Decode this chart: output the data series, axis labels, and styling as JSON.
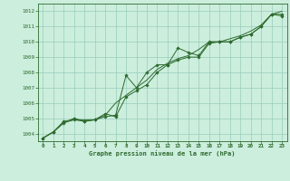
{
  "title": "Graphe pression niveau de la mer (hPa)",
  "bg_color": "#cceedd",
  "grid_color": "#99ccbb",
  "line_color": "#2d6a2d",
  "marker_color": "#2d6a2d",
  "xlim": [
    -0.5,
    23.5
  ],
  "ylim": [
    1003.5,
    1012.5
  ],
  "yticks": [
    1004,
    1005,
    1006,
    1007,
    1008,
    1009,
    1010,
    1011,
    1012
  ],
  "xticks": [
    0,
    1,
    2,
    3,
    4,
    5,
    6,
    7,
    8,
    9,
    10,
    11,
    12,
    13,
    14,
    15,
    16,
    17,
    18,
    19,
    20,
    21,
    22,
    23
  ],
  "series1_marked": {
    "x": [
      0,
      1,
      2,
      3,
      4,
      5,
      6,
      7,
      8,
      9,
      10,
      11,
      12,
      13,
      14,
      15,
      16,
      17,
      18,
      19,
      20,
      21,
      22,
      23
    ],
    "y": [
      1003.7,
      1004.1,
      1004.7,
      1005.0,
      1004.8,
      1004.9,
      1005.1,
      1005.2,
      1007.8,
      1007.0,
      1008.0,
      1008.5,
      1008.5,
      1009.6,
      1009.3,
      1009.1,
      1010.0,
      1010.0,
      1010.0,
      1010.3,
      1010.5,
      1011.0,
      1011.8,
      1011.7
    ]
  },
  "series2_marked": {
    "x": [
      0,
      1,
      2,
      3,
      4,
      5,
      6,
      7,
      8,
      9,
      10,
      11,
      12,
      13,
      14,
      15,
      16,
      17,
      18,
      19,
      20,
      21,
      22,
      23
    ],
    "y": [
      1003.7,
      1004.1,
      1004.8,
      1004.9,
      1004.8,
      1004.9,
      1005.3,
      1005.1,
      1006.4,
      1006.8,
      1007.2,
      1008.0,
      1008.5,
      1008.8,
      1009.0,
      1009.0,
      1009.9,
      1010.0,
      1010.0,
      1010.3,
      1010.5,
      1011.0,
      1011.8,
      1011.8
    ]
  },
  "series3_line": {
    "x": [
      0,
      1,
      2,
      3,
      4,
      5,
      6,
      7,
      8,
      9,
      10,
      11,
      12,
      13,
      14,
      15,
      16,
      17,
      18,
      19,
      20,
      21,
      22,
      23
    ],
    "y": [
      1003.7,
      1004.1,
      1004.7,
      1004.9,
      1004.9,
      1004.9,
      1005.2,
      1006.0,
      1006.5,
      1007.0,
      1007.5,
      1008.2,
      1008.6,
      1008.9,
      1009.1,
      1009.5,
      1010.0,
      1010.0,
      1010.2,
      1010.4,
      1010.7,
      1011.1,
      1011.8,
      1012.0
    ]
  }
}
